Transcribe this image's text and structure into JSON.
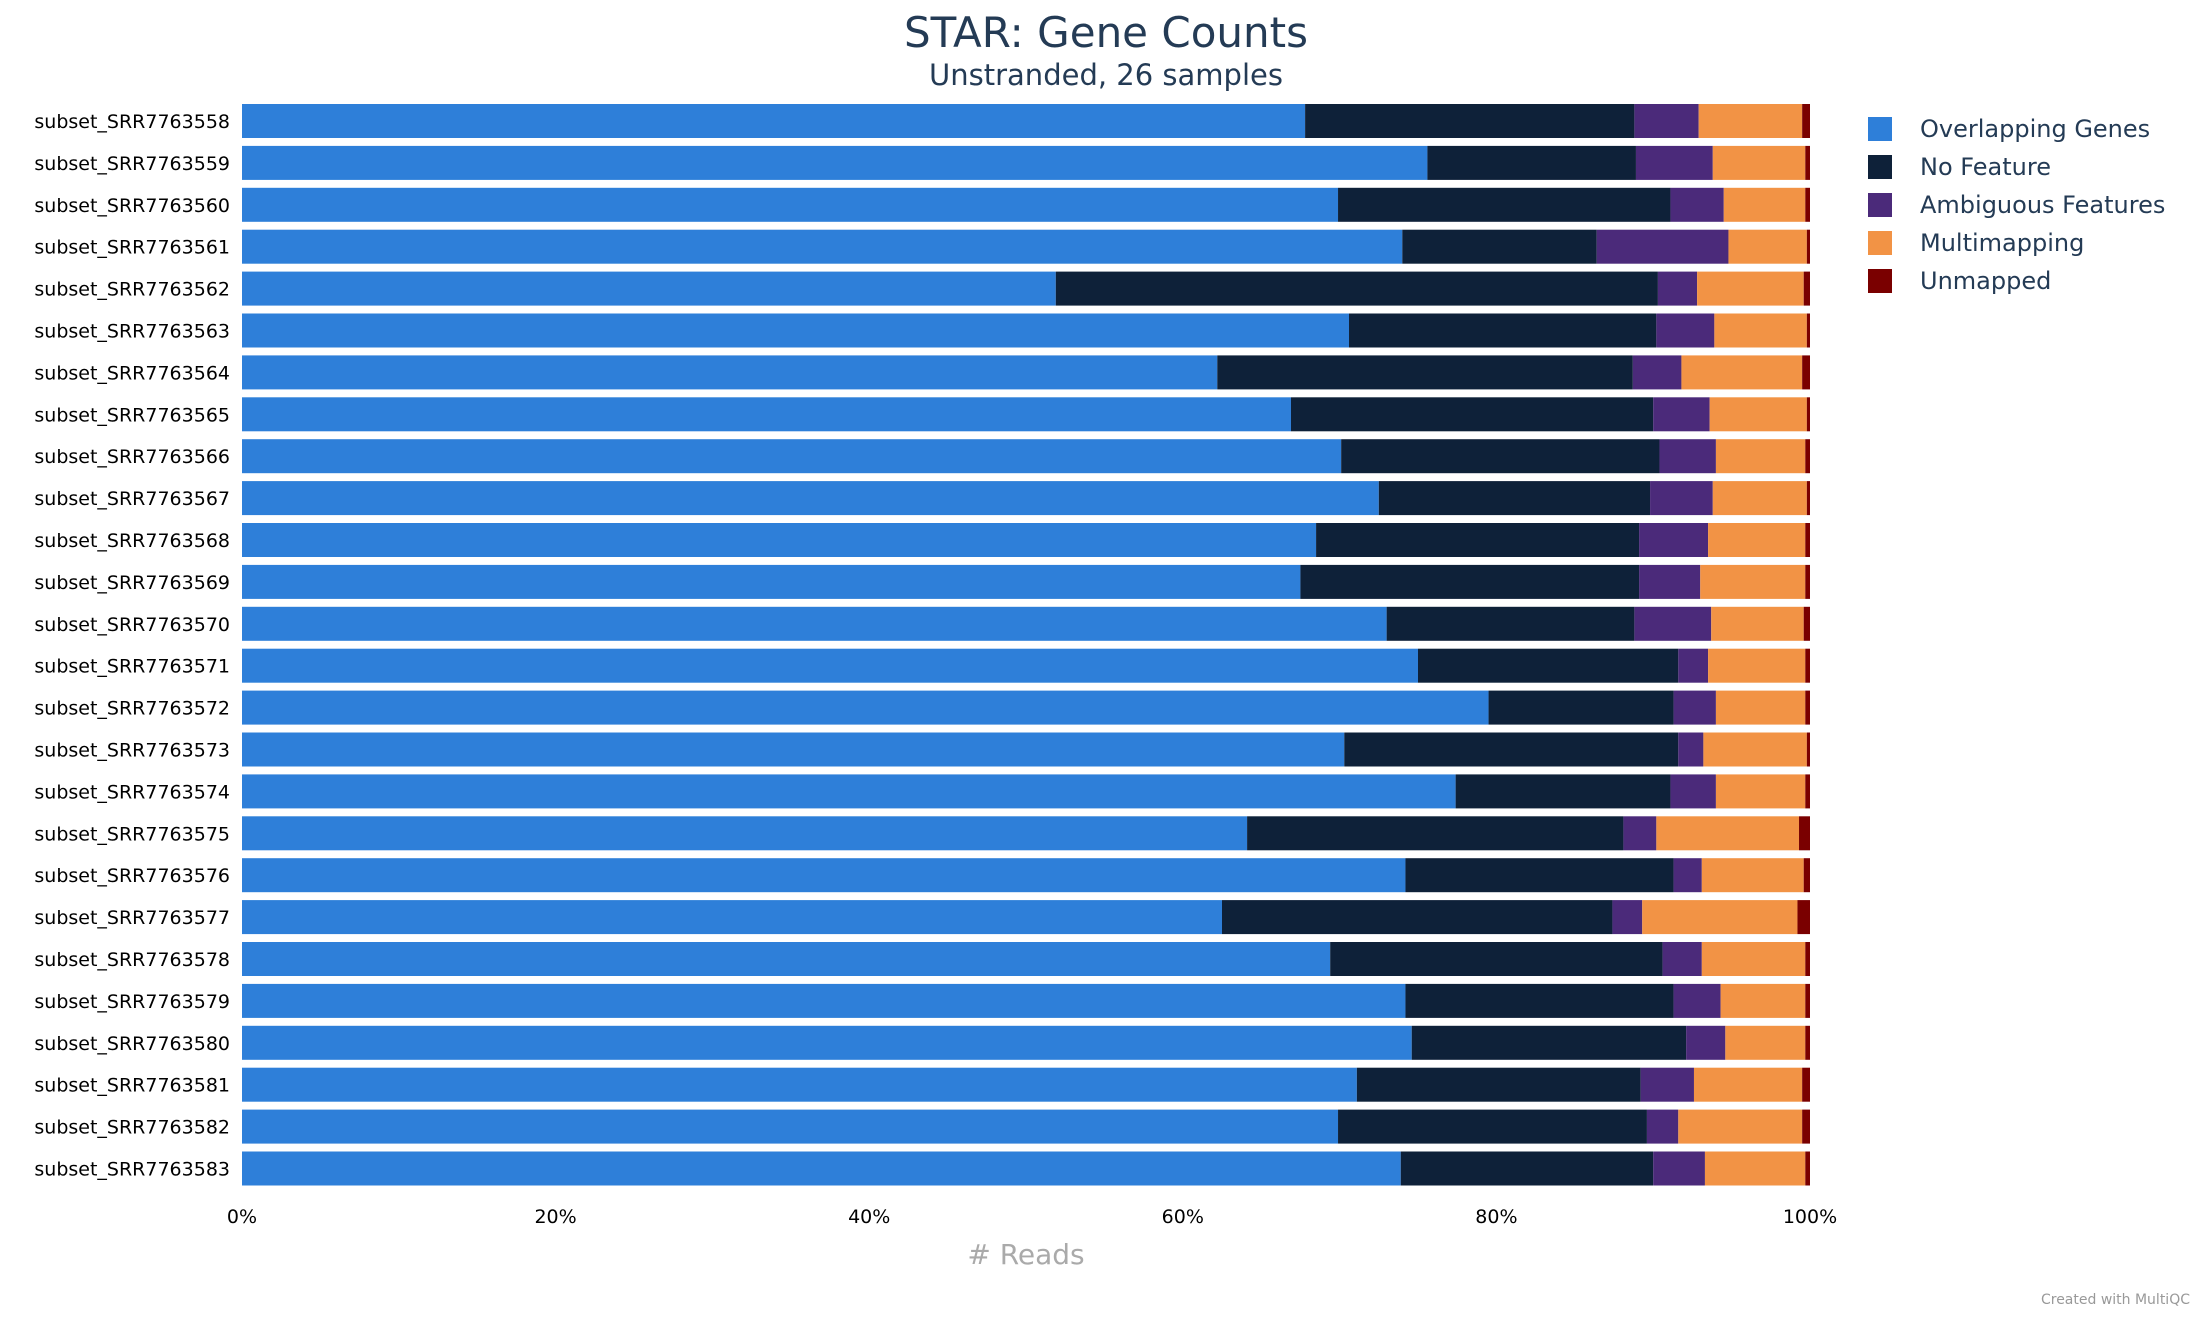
{
  "chart_data": {
    "type": "bar",
    "orientation": "horizontal",
    "stacked": "percent",
    "title": "STAR: Gene Counts",
    "subtitle": "Unstranded, 26 samples",
    "xlabel": "# Reads",
    "xlim": [
      0,
      100
    ],
    "x_ticks": [
      "0%",
      "20%",
      "40%",
      "60%",
      "80%",
      "100%"
    ],
    "legend_position": "right",
    "grid": false,
    "categories": [
      "subset_SRR7763558",
      "subset_SRR7763559",
      "subset_SRR7763560",
      "subset_SRR7763561",
      "subset_SRR7763562",
      "subset_SRR7763563",
      "subset_SRR7763564",
      "subset_SRR7763565",
      "subset_SRR7763566",
      "subset_SRR7763567",
      "subset_SRR7763568",
      "subset_SRR7763569",
      "subset_SRR7763570",
      "subset_SRR7763571",
      "subset_SRR7763572",
      "subset_SRR7763573",
      "subset_SRR7763574",
      "subset_SRR7763575",
      "subset_SRR7763576",
      "subset_SRR7763577",
      "subset_SRR7763578",
      "subset_SRR7763579",
      "subset_SRR7763580",
      "subset_SRR7763581",
      "subset_SRR7763582",
      "subset_SRR7763583"
    ],
    "series": [
      {
        "name": "Overlapping Genes",
        "color": "#2e7fd9",
        "values": [
          67.8,
          75.6,
          69.9,
          74.0,
          51.9,
          70.6,
          62.2,
          66.9,
          70.1,
          72.5,
          68.5,
          67.5,
          73.0,
          75.0,
          79.5,
          70.3,
          77.4,
          64.1,
          74.2,
          62.5,
          69.4,
          74.2,
          74.6,
          71.1,
          69.9,
          73.9
        ]
      },
      {
        "name": "No Feature",
        "color": "#0e2139",
        "values": [
          21.0,
          13.3,
          21.2,
          12.4,
          38.4,
          19.6,
          26.5,
          23.1,
          20.3,
          17.3,
          20.6,
          21.6,
          15.8,
          16.6,
          11.8,
          21.3,
          13.7,
          24.0,
          17.1,
          24.9,
          21.2,
          17.1,
          17.5,
          18.1,
          19.7,
          16.1
        ]
      },
      {
        "name": "Ambiguous Features",
        "color": "#4b2a7a",
        "values": [
          4.1,
          4.9,
          3.4,
          8.4,
          2.5,
          3.7,
          3.1,
          3.6,
          3.6,
          4.0,
          4.4,
          3.9,
          4.9,
          1.9,
          2.7,
          1.6,
          2.9,
          2.1,
          1.8,
          1.9,
          2.5,
          3.0,
          2.5,
          3.4,
          2.0,
          3.3
        ]
      },
      {
        "name": "Multimapping",
        "color": "#f29345",
        "values": [
          6.6,
          5.9,
          5.2,
          5.0,
          6.8,
          5.9,
          7.7,
          6.2,
          5.7,
          6.0,
          6.2,
          6.7,
          5.9,
          6.2,
          5.7,
          6.6,
          5.7,
          9.1,
          6.5,
          9.9,
          6.6,
          5.4,
          5.1,
          6.9,
          7.9,
          6.4
        ]
      },
      {
        "name": "Unmapped",
        "color": "#7a0000",
        "values": [
          0.5,
          0.3,
          0.3,
          0.2,
          0.4,
          0.2,
          0.5,
          0.2,
          0.3,
          0.2,
          0.3,
          0.3,
          0.4,
          0.3,
          0.3,
          0.2,
          0.3,
          0.7,
          0.4,
          0.8,
          0.3,
          0.3,
          0.3,
          0.5,
          0.5,
          0.3
        ]
      }
    ]
  },
  "credit": "Created with MultiQC"
}
